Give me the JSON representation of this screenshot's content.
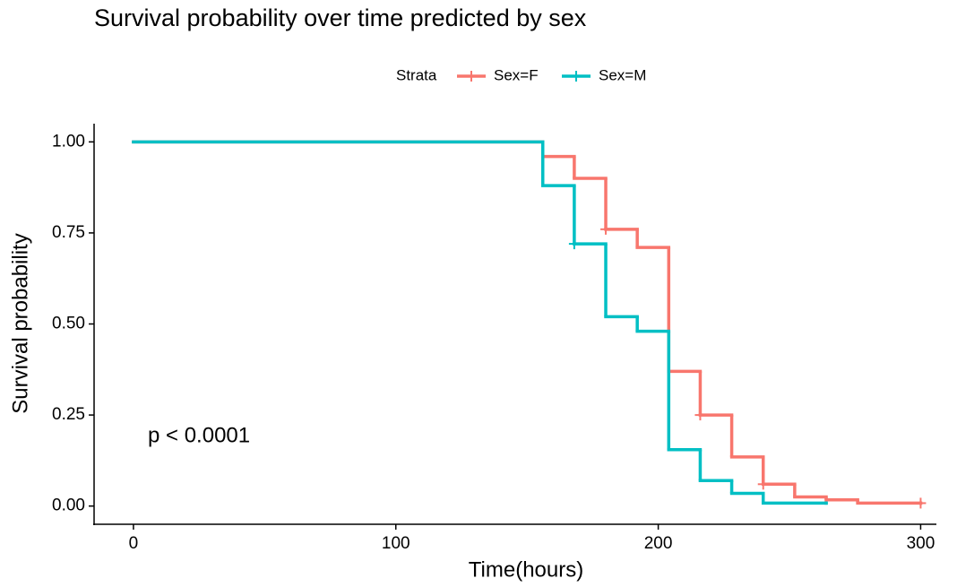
{
  "chart_data": {
    "type": "step",
    "title": "Survival probability over time predicted by sex",
    "x_label": "Time(hours)",
    "y_label": "Survival probability",
    "legend_title": "Strata",
    "annotation": "p < 0.0001",
    "xlim": [
      -15,
      306
    ],
    "ylim": [
      -0.05,
      1.05
    ],
    "xticks": [
      0,
      100,
      200,
      300
    ],
    "yticks": [
      {
        "value": 0,
        "label": "0.00"
      },
      0.25,
      {
        "value": 0.5,
        "label": "0.50"
      },
      0.75,
      {
        "value": 1,
        "label": "1.00"
      }
    ],
    "series": [
      {
        "name": "Sex=F",
        "color": "#f8766d",
        "x": [
          0,
          156,
          168,
          180,
          192,
          204,
          216,
          228,
          240,
          252,
          264,
          276,
          300
        ],
        "values": [
          1,
          0.96,
          0.9,
          0.76,
          0.71,
          0.37,
          0.25,
          0.135,
          0.06,
          0.025,
          0.017,
          0.008,
          0.008
        ],
        "censor_x": [
          180,
          216,
          240,
          300
        ],
        "censor_y": [
          0.76,
          0.25,
          0.06,
          0.008
        ]
      },
      {
        "name": "Sex=M",
        "color": "#00bfc4",
        "x": [
          0,
          156,
          168,
          180,
          192,
          204,
          216,
          228,
          240,
          264
        ],
        "values": [
          1,
          0.88,
          0.72,
          0.52,
          0.48,
          0.155,
          0.07,
          0.035,
          0.008,
          0.008
        ],
        "censor_x": [
          168
        ],
        "censor_y": [
          0.72
        ]
      }
    ]
  }
}
